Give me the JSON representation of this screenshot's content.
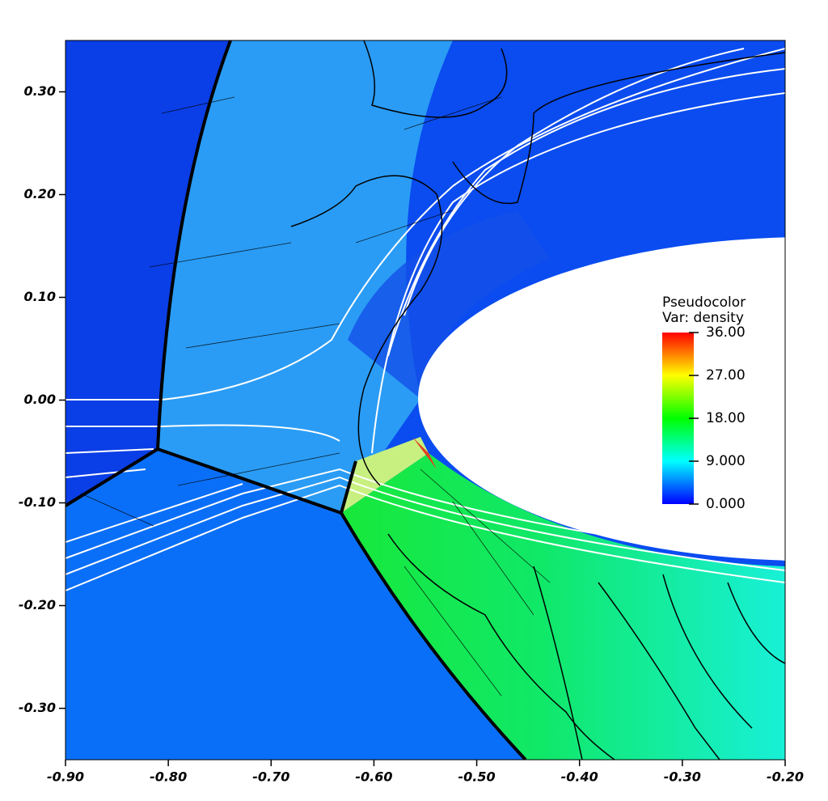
{
  "chart_data": {
    "type": "pseudocolor",
    "legend_title": "Pseudocolor",
    "legend_var": "Var: density",
    "xlim": [
      -0.9,
      -0.2
    ],
    "xticks": [
      {
        "value": -0.9,
        "label": "-0.90"
      },
      {
        "value": -0.8,
        "label": "-0.80"
      },
      {
        "value": -0.7,
        "label": "-0.70"
      },
      {
        "value": -0.6,
        "label": "-0.60"
      },
      {
        "value": -0.5,
        "label": "-0.50"
      },
      {
        "value": -0.4,
        "label": "-0.40"
      },
      {
        "value": -0.3,
        "label": "-0.30"
      },
      {
        "value": -0.2,
        "label": "-0.20"
      }
    ],
    "ylim": [
      -0.35,
      0.35
    ],
    "yticks": [
      {
        "value": 0.3,
        "label": "0.30"
      },
      {
        "value": 0.2,
        "label": "0.20"
      },
      {
        "value": 0.1,
        "label": "0.10"
      },
      {
        "value": 0,
        "label": "0.00"
      },
      {
        "value": -0.1,
        "label": "-0.10"
      },
      {
        "value": -0.2,
        "label": "-0.20"
      },
      {
        "value": -0.3,
        "label": "-0.30"
      }
    ],
    "colorbar_lim": [
      0,
      36
    ],
    "colorbar_ticks": [
      {
        "value": 36,
        "label": "36.00"
      },
      {
        "value": 27,
        "label": "27.00"
      },
      {
        "value": 18,
        "label": "18.00"
      },
      {
        "value": 9,
        "label": "9.000"
      },
      {
        "value": 0,
        "label": "0.000"
      }
    ],
    "colormap": [
      "#0000ff",
      "#00ffff",
      "#00ff00",
      "#ffff00",
      "#ff0000"
    ]
  }
}
